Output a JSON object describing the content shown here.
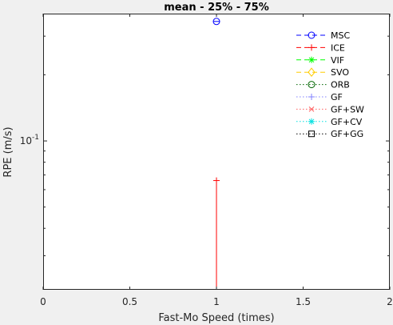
{
  "chart_data": {
    "type": "line",
    "title": "mean - 25% - 75%",
    "xlabel": "Fast-Mo Speed (times)",
    "ylabel": "RPE (m/s)",
    "xlim": [
      0,
      2
    ],
    "ylim": [
      0.021,
      0.38
    ],
    "yscale": "log",
    "xticks": [
      {
        "value": 0,
        "label": "0"
      },
      {
        "value": 0.5,
        "label": "0.5"
      },
      {
        "value": 1,
        "label": "1"
      },
      {
        "value": 1.5,
        "label": "1.5"
      },
      {
        "value": 2,
        "label": "2"
      }
    ],
    "yticks": [
      {
        "value": 0.1,
        "label": "10",
        "exponent": "-1"
      }
    ],
    "yminor": [
      0.03,
      0.04,
      0.05,
      0.06,
      0.07,
      0.08,
      0.09,
      0.2,
      0.3
    ],
    "grid": false,
    "legend_position": "top-right",
    "series": [
      {
        "name": "MSC",
        "color": "#0000ff",
        "line": "dash",
        "marker": "circle",
        "points": [
          {
            "x": 1,
            "y": 0.35
          }
        ]
      },
      {
        "name": "ICE",
        "color": "#ff0000",
        "line": "dash",
        "marker": "plus",
        "points": [
          {
            "x": 1,
            "y": 0.021
          },
          {
            "x": 1,
            "y": 0.066
          }
        ]
      },
      {
        "name": "VIF",
        "color": "#00ff00",
        "line": "dash",
        "marker": "asterisk",
        "points": []
      },
      {
        "name": "SVO",
        "color": "#ffcc00",
        "line": "dash",
        "marker": "diamond",
        "points": []
      },
      {
        "name": "ORB",
        "color": "#006400",
        "line": "dot",
        "marker": "circle",
        "points": []
      },
      {
        "name": "GF",
        "color": "#8080ff",
        "line": "dot",
        "marker": "plus",
        "points": []
      },
      {
        "name": "GF+SW",
        "color": "#ff6060",
        "line": "dot",
        "marker": "x",
        "points": []
      },
      {
        "name": "GF+CV",
        "color": "#00e0e0",
        "line": "dot",
        "marker": "asterisk",
        "points": []
      },
      {
        "name": "GF+GG",
        "color": "#000000",
        "line": "dot",
        "marker": "square",
        "points": []
      }
    ]
  }
}
